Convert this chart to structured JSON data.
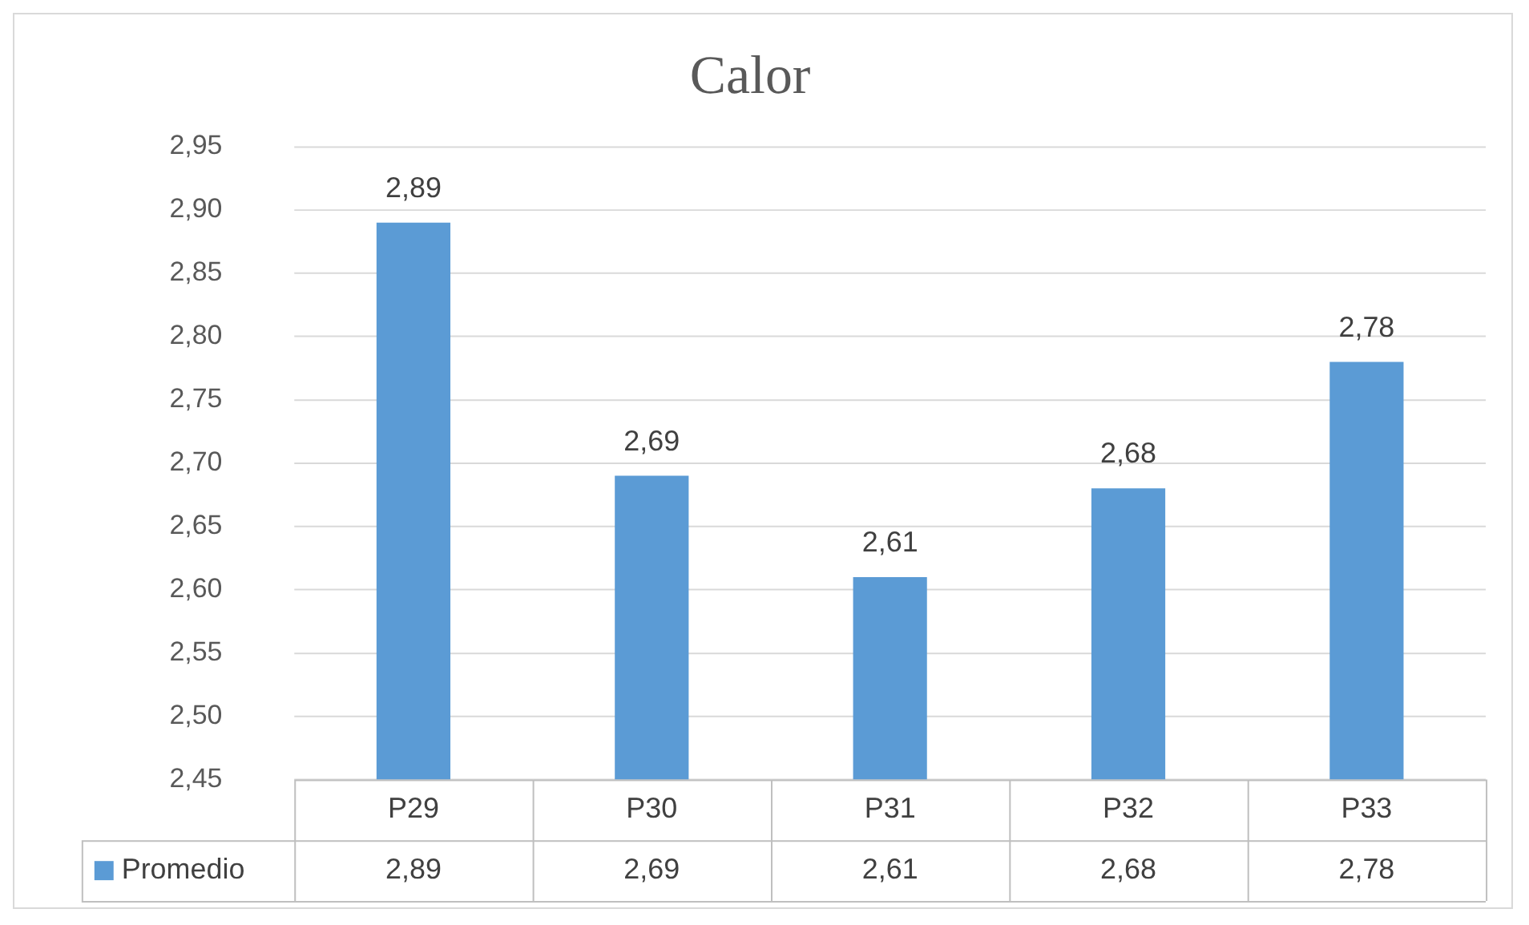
{
  "chart_data": {
    "type": "bar",
    "title": "Calor",
    "categories": [
      "P29",
      "P30",
      "P31",
      "P32",
      "P33"
    ],
    "series": [
      {
        "name": "Promedio",
        "color": "#5b9bd5",
        "values": [
          2.89,
          2.69,
          2.61,
          2.68,
          2.78
        ],
        "value_labels": [
          "2,89",
          "2,69",
          "2,61",
          "2,68",
          "2,78"
        ]
      }
    ],
    "ylim": [
      2.45,
      2.95
    ],
    "yticks": [
      {
        "value": 2.45,
        "label": "2,45"
      },
      {
        "value": 2.5,
        "label": "2,50"
      },
      {
        "value": 2.55,
        "label": "2,55"
      },
      {
        "value": 2.6,
        "label": "2,60"
      },
      {
        "value": 2.65,
        "label": "2,65"
      },
      {
        "value": 2.7,
        "label": "2,70"
      },
      {
        "value": 2.75,
        "label": "2,75"
      },
      {
        "value": 2.8,
        "label": "2,80"
      },
      {
        "value": 2.85,
        "label": "2,85"
      },
      {
        "value": 2.9,
        "label": "2,90"
      },
      {
        "value": 2.95,
        "label": "2,95"
      }
    ],
    "grid": "y"
  }
}
